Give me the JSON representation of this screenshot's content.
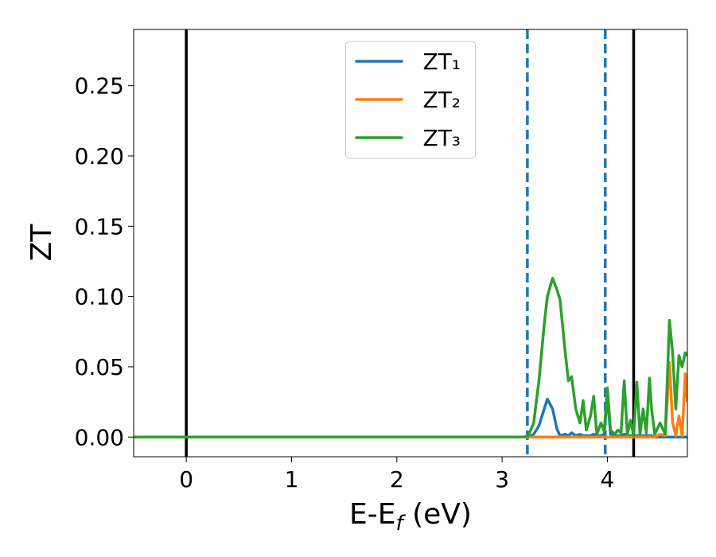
{
  "chart_data": {
    "type": "line",
    "xlabel": [
      "E-E",
      "f",
      " (eV)"
    ],
    "ylabel": "ZT",
    "xlim": [
      -0.5,
      4.76
    ],
    "ylim": [
      -0.014,
      0.29
    ],
    "xticks": [
      0,
      1,
      2,
      3,
      4
    ],
    "yticks": [
      {
        "value": 0,
        "label": "0.00"
      },
      {
        "value": 0.05,
        "label": "0.05"
      },
      {
        "value": 0.1,
        "label": "0.10"
      },
      {
        "value": 0.15,
        "label": "0.15"
      },
      {
        "value": 0.2,
        "label": "0.20"
      },
      {
        "value": 0.25,
        "label": "0.25"
      }
    ],
    "legend": "upper center",
    "vlines": [
      {
        "value": 0,
        "color": "#000000",
        "style": "solid"
      },
      {
        "value": 4.25,
        "color": "#000000",
        "style": "solid"
      },
      {
        "value": 3.24,
        "color": "#1f77b4",
        "style": "dashed"
      },
      {
        "value": 3.98,
        "color": "#1f77b4",
        "style": "dashed"
      }
    ],
    "x": [
      -0.5,
      3.0,
      3.2,
      3.25,
      3.3,
      3.35,
      3.4,
      3.43,
      3.48,
      3.52,
      3.55,
      3.6,
      3.63,
      3.66,
      3.7,
      3.74,
      3.77,
      3.8,
      3.84,
      3.87,
      3.9,
      3.94,
      3.97,
      4.0,
      4.03,
      4.07,
      4.1,
      4.13,
      4.16,
      4.19,
      4.22,
      4.25,
      4.28,
      4.31,
      4.34,
      4.37,
      4.4,
      4.42,
      4.45,
      4.5,
      4.55,
      4.59,
      4.62,
      4.65,
      4.68,
      4.71,
      4.74,
      4.76
    ],
    "series": [
      {
        "name": "ZT₁",
        "color": "#1f77b4",
        "values": [
          0,
          0,
          0,
          0,
          0.002,
          0.008,
          0.02,
          0.027,
          0.02,
          0.006,
          0.001,
          0.002,
          0.001,
          0.003,
          0.001,
          0.002,
          0.001,
          0.001,
          0.001,
          0.002,
          0.001,
          0.001,
          0.002,
          0.03,
          0.002,
          0.001,
          0.001,
          0.001,
          0.002,
          0.001,
          0.001,
          0.001,
          0.001,
          0.001,
          0.001,
          0.001,
          0.001,
          0.001,
          0,
          0,
          0,
          0,
          0,
          0,
          0,
          0,
          0,
          0
        ]
      },
      {
        "name": "ZT₂",
        "color": "#ff7f0e",
        "values": [
          0,
          0,
          0,
          0,
          0,
          0,
          0,
          0,
          0,
          0,
          0,
          0,
          0,
          0,
          0,
          0,
          0,
          0,
          0,
          0,
          0,
          0,
          0,
          0,
          0,
          0,
          0,
          0,
          0,
          0,
          0,
          0,
          0,
          0,
          0,
          0,
          0,
          0,
          0,
          0.002,
          0.001,
          0.053,
          0.01,
          0.001,
          0.015,
          0.001,
          0.045,
          0.025
        ]
      },
      {
        "name": "ZT₃",
        "color": "#2ca02c",
        "values": [
          0,
          0,
          0,
          0.001,
          0.01,
          0.04,
          0.08,
          0.1,
          0.113,
          0.105,
          0.098,
          0.06,
          0.04,
          0.043,
          0.02,
          0.01,
          0.026,
          0.005,
          0.015,
          0.029,
          0.002,
          0.01,
          0.004,
          0.035,
          0.005,
          0.002,
          0.005,
          0.003,
          0.04,
          0.002,
          0.012,
          0.001,
          0.039,
          0.002,
          0.02,
          0.003,
          0.042,
          0.02,
          0.002,
          0.01,
          0.002,
          0.083,
          0.06,
          0.02,
          0.058,
          0.05,
          0.06,
          0.058
        ]
      }
    ]
  }
}
